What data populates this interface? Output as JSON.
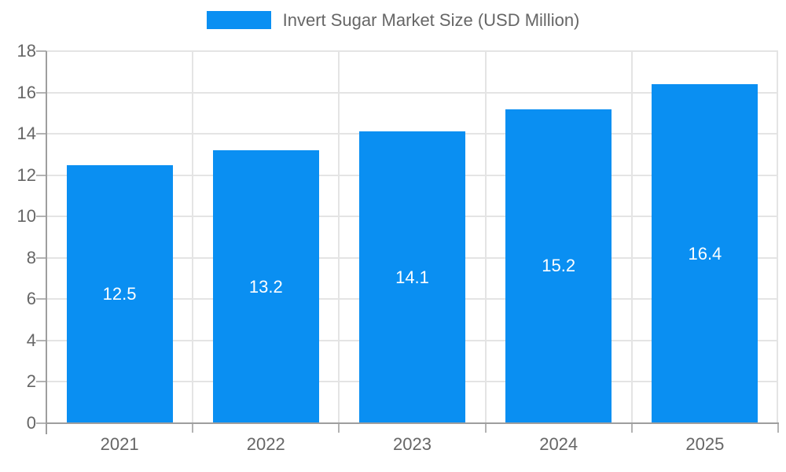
{
  "chart_data": {
    "type": "bar",
    "title": "Invert Sugar Market Size (USD Million)",
    "categories": [
      "2021",
      "2022",
      "2023",
      "2024",
      "2025"
    ],
    "values": [
      12.5,
      13.2,
      14.1,
      15.2,
      16.4
    ],
    "value_labels": [
      "12.5",
      "13.2",
      "14.1",
      "15.2",
      "16.4"
    ],
    "xlabel": "",
    "ylabel": "",
    "ylim": [
      0,
      18
    ],
    "yticks": [
      0,
      2,
      4,
      6,
      8,
      10,
      12,
      14,
      16,
      18
    ],
    "grid": true,
    "legend_position": "top-center",
    "legend_entries": [
      "Invert Sugar Market Size (USD Million)"
    ],
    "colors": {
      "bar": "#0a8ff2",
      "bar_label": "#ffffff",
      "axis": "#9e9e9e",
      "grid": "#e4e4e4",
      "tick": "#b3b3b3",
      "text": "#666666",
      "background": "#ffffff"
    }
  }
}
